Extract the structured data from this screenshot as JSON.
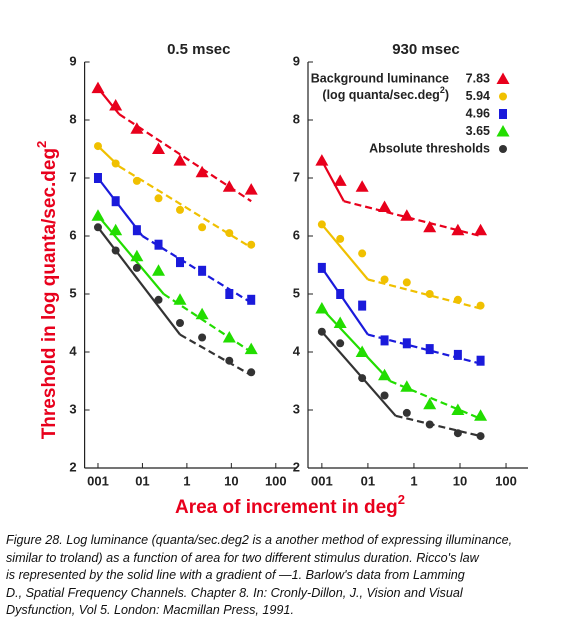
{
  "chart_data": [
    {
      "type": "scatter",
      "title": "0.5 msec",
      "x": [
        0.01,
        0.025,
        0.075,
        0.23,
        0.7,
        2.2,
        9,
        28
      ],
      "xscale": "log",
      "xlim": [
        0.005,
        300
      ],
      "xticks": [
        {
          "value": 0.01,
          "label": "001"
        },
        {
          "value": 0.1,
          "label": "01"
        },
        1,
        10,
        100
      ],
      "ylim": [
        2,
        9
      ],
      "yticks": [
        2,
        3,
        4,
        5,
        6,
        7,
        8,
        9
      ],
      "series": [
        {
          "color": "#e8001c",
          "marker": "triangle",
          "values": [
            8.55,
            8.25,
            7.85,
            7.5,
            7.3,
            7.1,
            6.85,
            6.8
          ],
          "fit_x": [
            0.01,
            0.03,
            28
          ],
          "fit_values": [
            8.55,
            8.1,
            6.6
          ]
        },
        {
          "color": "#f0c000",
          "marker": "circle",
          "values": [
            7.55,
            7.25,
            6.95,
            6.65,
            6.45,
            6.15,
            6.05,
            5.85
          ],
          "fit_x": [
            0.01,
            0.03,
            28
          ],
          "fit_values": [
            7.55,
            7.2,
            5.8
          ]
        },
        {
          "color": "#1a1adb",
          "marker": "square",
          "values": [
            7.0,
            6.6,
            6.1,
            5.85,
            5.55,
            5.4,
            5.0,
            4.9
          ],
          "fit_x": [
            0.01,
            0.1,
            28
          ],
          "fit_values": [
            7.0,
            6.0,
            4.85
          ]
        },
        {
          "color": "#22dd00",
          "marker": "triangle",
          "values": [
            6.35,
            6.1,
            5.65,
            5.4,
            4.9,
            4.65,
            4.25,
            4.05
          ],
          "fit_x": [
            0.01,
            0.3,
            28
          ],
          "fit_values": [
            6.35,
            5.0,
            4.0
          ]
        },
        {
          "color": "#333333",
          "marker": "circle",
          "values": [
            6.15,
            5.75,
            5.45,
            4.9,
            4.5,
            4.25,
            3.85,
            3.65
          ],
          "fit_x": [
            0.01,
            0.7,
            28
          ],
          "fit_values": [
            6.15,
            4.3,
            3.6
          ]
        }
      ]
    },
    {
      "type": "scatter",
      "title": "930 msec",
      "x": [
        0.01,
        0.025,
        0.075,
        0.23,
        0.7,
        2.2,
        9,
        28
      ],
      "xscale": "log",
      "xlim": [
        0.005,
        300
      ],
      "xticks": [
        {
          "value": 0.01,
          "label": "001"
        },
        {
          "value": 0.1,
          "label": "01"
        },
        1,
        10,
        100
      ],
      "ylim": [
        2,
        9
      ],
      "yticks": [
        2,
        3,
        4,
        5,
        6,
        7,
        8,
        9
      ],
      "legend_title": "Background luminance",
      "legend_subtitle": "(log quanta/sec.deg",
      "legend_subtitle_sup": "2",
      "legend_subtitle_end": ")",
      "series": [
        {
          "name": "7.83",
          "color": "#e8001c",
          "marker": "triangle",
          "values": [
            7.3,
            6.95,
            6.85,
            6.5,
            6.35,
            6.15,
            6.1,
            6.1
          ],
          "fit_x": [
            0.01,
            0.03,
            28
          ],
          "fit_values": [
            7.3,
            6.6,
            6.0
          ]
        },
        {
          "name": "5.94",
          "color": "#f0c000",
          "marker": "circle",
          "values": [
            6.2,
            5.95,
            5.7,
            5.25,
            5.2,
            5.0,
            4.9,
            4.8
          ],
          "fit_x": [
            0.01,
            0.1,
            28
          ],
          "fit_values": [
            6.2,
            5.25,
            4.75
          ]
        },
        {
          "name": "4.96",
          "color": "#1a1adb",
          "marker": "square",
          "values": [
            5.45,
            5.0,
            4.8,
            4.2,
            4.15,
            4.05,
            3.95,
            3.85
          ],
          "fit_x": [
            0.01,
            0.1,
            28
          ],
          "fit_values": [
            5.45,
            4.3,
            3.8
          ]
        },
        {
          "name": "3.65",
          "color": "#22dd00",
          "marker": "triangle",
          "values": [
            4.75,
            4.5,
            4.0,
            3.6,
            3.4,
            3.1,
            3.0,
            2.9
          ],
          "fit_x": [
            0.01,
            0.3,
            28
          ],
          "fit_values": [
            4.75,
            3.5,
            2.85
          ]
        },
        {
          "name": "Absolute thresholds",
          "color": "#333333",
          "marker": "circle",
          "values": [
            4.35,
            4.15,
            3.55,
            3.25,
            2.95,
            2.75,
            2.6,
            2.55
          ],
          "fit_x": [
            0.01,
            0.4,
            28
          ],
          "fit_values": [
            4.35,
            2.9,
            2.55
          ]
        }
      ]
    }
  ],
  "ylabel": "Threshold in log quanta/sec.deg",
  "ylabel_sup": "2",
  "xlabel": "Area of increment in deg",
  "xlabel_sup": "2",
  "caption_lines": [
    "Figure 28. Log luminance (quanta/sec.deg2 is a another method of expressing illuminance,",
    "similar to troland) as a function of area for two different stimulus duration. Ricco's law",
    "is represented by the solid line with a gradient of —1. Barlow's data from Lamming",
    "D., Spatial Frequency Channels. Chapter 8. In: Cronly-Dillon, J., Vision and Visual",
    "Dysfunction, Vol 5. London: Macmillan Press, 1991."
  ]
}
